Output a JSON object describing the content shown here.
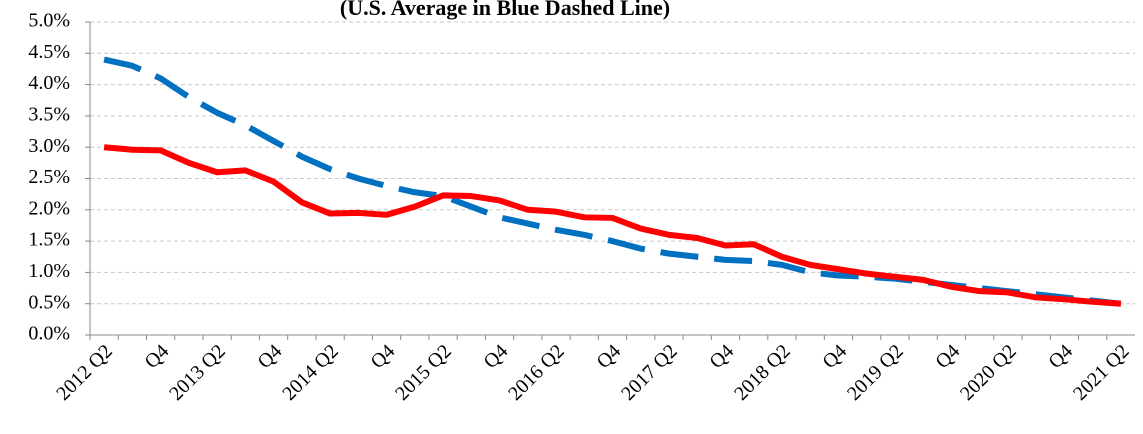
{
  "chart_data": {
    "type": "line",
    "subtitle": "(U.S. Average in Blue Dashed Line)",
    "categories": [
      "2012 Q2",
      null,
      "Q4",
      null,
      "2013 Q2",
      null,
      "Q4",
      null,
      "2014 Q2",
      null,
      "Q4",
      null,
      "2015 Q2",
      null,
      "Q4",
      null,
      "2016 Q2",
      null,
      "Q4",
      null,
      "2017 Q2",
      null,
      "Q4",
      null,
      "2018 Q2",
      null,
      "Q4",
      null,
      "2019 Q2",
      null,
      "Q4",
      null,
      "2020 Q2",
      null,
      "Q4",
      null,
      "2021 Q2"
    ],
    "series": [
      {
        "color": "#0070c0",
        "dashed": true,
        "values": [
          4.4,
          4.3,
          4.1,
          3.8,
          3.55,
          3.35,
          3.1,
          2.85,
          2.65,
          2.5,
          2.38,
          2.28,
          2.22,
          2.05,
          1.88,
          1.78,
          1.68,
          1.6,
          1.5,
          1.38,
          1.3,
          1.25,
          1.2,
          1.18,
          1.12,
          1.0,
          0.95,
          0.93,
          0.9,
          0.85,
          0.8,
          0.75,
          0.7,
          0.65,
          0.6,
          0.55,
          0.5
        ]
      },
      {
        "color": "#ff0000",
        "dashed": false,
        "values": [
          3.0,
          2.96,
          2.95,
          2.75,
          2.6,
          2.63,
          2.45,
          2.12,
          1.94,
          1.95,
          1.92,
          2.05,
          2.23,
          2.22,
          2.15,
          2.0,
          1.97,
          1.88,
          1.87,
          1.7,
          1.6,
          1.55,
          1.43,
          1.45,
          1.25,
          1.12,
          1.05,
          0.98,
          0.93,
          0.88,
          0.77,
          0.7,
          0.68,
          0.6,
          0.57,
          0.53,
          0.5
        ]
      }
    ],
    "ylim": [
      0,
      5
    ],
    "yticks": [
      {
        "value": 0,
        "label": "0.0%"
      },
      {
        "value": 0.5,
        "label": "0.5%"
      },
      {
        "value": 1,
        "label": "1.0%"
      },
      {
        "value": 1.5,
        "label": "1.5%"
      },
      {
        "value": 2,
        "label": "2.0%"
      },
      {
        "value": 2.5,
        "label": "2.5%"
      },
      {
        "value": 3,
        "label": "3.0%"
      },
      {
        "value": 3.5,
        "label": "3.5%"
      },
      {
        "value": 4,
        "label": "4.0%"
      },
      {
        "value": 4.5,
        "label": "4.5%"
      },
      {
        "value": 5,
        "label": "5.0%"
      }
    ],
    "grid": true
  }
}
